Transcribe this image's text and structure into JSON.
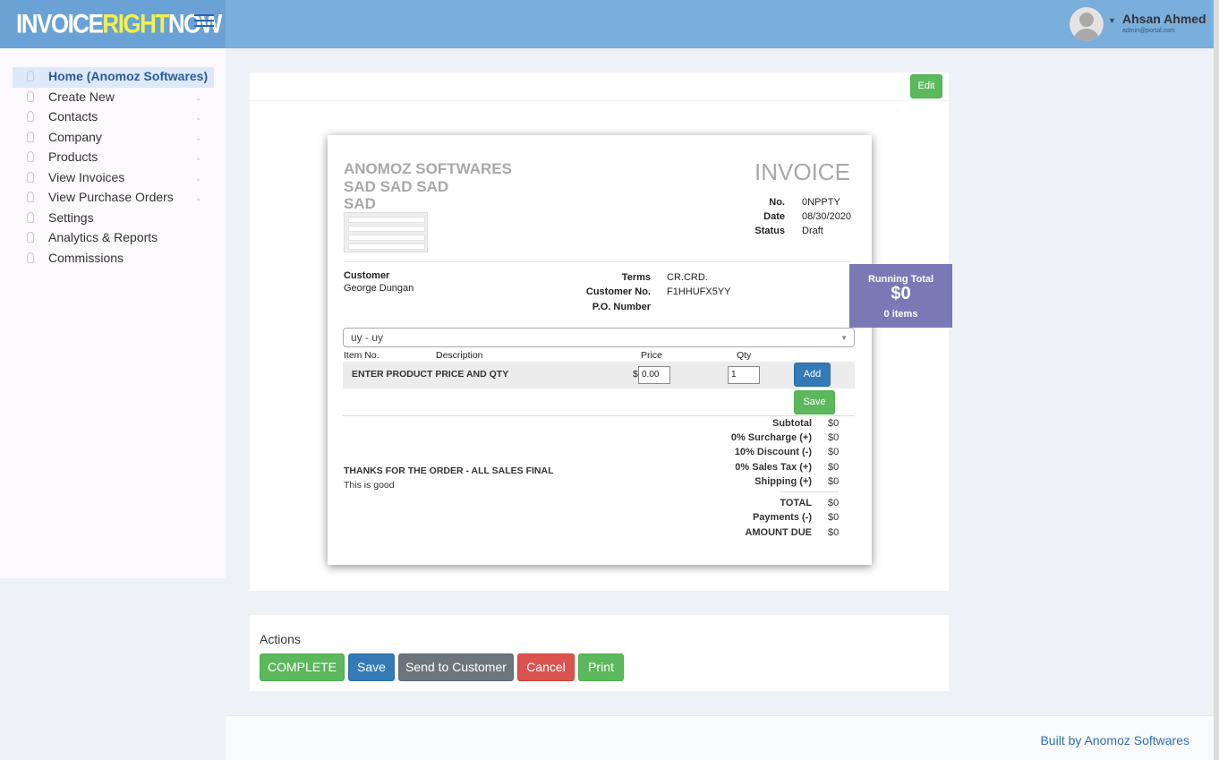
{
  "header": {
    "brand_a": "INVOICE",
    "brand_b": "RIGHT",
    "brand_c": "NOW",
    "user_name": "Ahsan Ahmed",
    "user_email": "admin@portal.com"
  },
  "sidebar": {
    "items": [
      {
        "label": "Home (Anomoz Softwares)",
        "active": true,
        "chevron": false
      },
      {
        "label": "Create New",
        "chevron": true
      },
      {
        "label": "Contacts",
        "chevron": true
      },
      {
        "label": "Company",
        "chevron": true
      },
      {
        "label": "Products",
        "chevron": true
      },
      {
        "label": "View Invoices",
        "chevron": true
      },
      {
        "label": "View Purchase Orders",
        "chevron": true
      },
      {
        "label": "Settings",
        "chevron": false
      },
      {
        "label": "Analytics & Reports",
        "chevron": false
      },
      {
        "label": "Commissions",
        "chevron": false
      }
    ]
  },
  "card": {
    "edit_label": "Edit"
  },
  "invoice": {
    "company_line1": "ANOMOZ SOFTWARES",
    "company_line2": "SAD SAD SAD",
    "company_line3": "SAD",
    "title": "INVOICE",
    "no_label": "No.",
    "no_value": "0NPPTY",
    "date_label": "Date",
    "date_value": "08/30/2020",
    "status_label": "Status",
    "status_value": "Draft",
    "customer_label": "Customer",
    "customer_value": "George Dungan",
    "terms_label": "Terms",
    "terms_value": "CR.CRD.",
    "customer_no_label": "Customer No.",
    "customer_no_value": "F1HHUFX5YY",
    "po_label": "P.O. Number",
    "po_value": "",
    "product_select": "uy - uy",
    "col_item_no": "Item No.",
    "col_description": "Description",
    "col_price": "Price",
    "col_qty": "Qty",
    "entry_prompt": "ENTER PRODUCT PRICE AND QTY",
    "currency_symbol": "$",
    "price_value": "0.00",
    "qty_value": "1",
    "add_label": "Add",
    "save_label": "Save",
    "totals": [
      {
        "label": "Subtotal",
        "value": "$0"
      },
      {
        "label": "0% Surcharge (+)",
        "value": "$0"
      },
      {
        "label": "10% Discount (-)",
        "value": "$0"
      },
      {
        "label": "0% Sales Tax (+)",
        "value": "$0"
      },
      {
        "label": "Shipping (+)",
        "value": "$0"
      },
      {
        "label": "TOTAL",
        "value": "$0"
      },
      {
        "label": "Payments (-)",
        "value": "$0"
      },
      {
        "label": "AMOUNT DUE",
        "value": "$0"
      }
    ],
    "thanks_note": "THANKS FOR THE ORDER - ALL SALES FINAL",
    "note": "This is good"
  },
  "running_total": {
    "label": "Running Total",
    "value": "$0",
    "items": "0 items"
  },
  "actions": {
    "title": "Actions",
    "complete": "COMPLETE",
    "save": "Save",
    "send": "Send to Customer",
    "cancel": "Cancel",
    "print": "Print"
  },
  "footer": {
    "text": "Built by Anomoz Softwares"
  },
  "colors": {
    "header": "#7aaedc",
    "success": "#5cb85c",
    "primary": "#337ab7",
    "danger": "#d9534f",
    "secondary": "#6c757d",
    "running_total": "#7a79b5"
  }
}
